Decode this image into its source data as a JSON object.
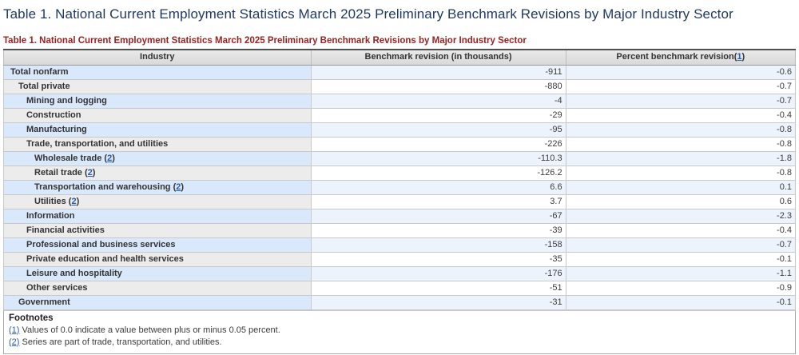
{
  "page": {
    "title": "Table 1. National Current Employment Statistics March 2025 Preliminary Benchmark Revisions by Major Industry Sector"
  },
  "table": {
    "caption": "Table 1. National Current Employment Statistics March 2025 Preliminary Benchmark Revisions by Major Industry Sector",
    "columns": [
      "Industry",
      "Benchmark revision (in thousands)",
      "Percent benchmark revision"
    ],
    "header_footnote_ref": "1",
    "rows": [
      {
        "industry": "Total nonfarm",
        "indent": 0,
        "footnote_ref": null,
        "benchmark_revision": "-911",
        "percent_revision": "-0.6"
      },
      {
        "industry": "Total private",
        "indent": 1,
        "footnote_ref": null,
        "benchmark_revision": "-880",
        "percent_revision": "-0.7"
      },
      {
        "industry": "Mining and logging",
        "indent": 2,
        "footnote_ref": null,
        "benchmark_revision": "-4",
        "percent_revision": "-0.7"
      },
      {
        "industry": "Construction",
        "indent": 2,
        "footnote_ref": null,
        "benchmark_revision": "-29",
        "percent_revision": "-0.4"
      },
      {
        "industry": "Manufacturing",
        "indent": 2,
        "footnote_ref": null,
        "benchmark_revision": "-95",
        "percent_revision": "-0.8"
      },
      {
        "industry": "Trade, transportation, and utilities",
        "indent": 2,
        "footnote_ref": null,
        "benchmark_revision": "-226",
        "percent_revision": "-0.8"
      },
      {
        "industry": "Wholesale trade",
        "indent": 3,
        "footnote_ref": "2",
        "benchmark_revision": "-110.3",
        "percent_revision": "-1.8"
      },
      {
        "industry": "Retail trade",
        "indent": 3,
        "footnote_ref": "2",
        "benchmark_revision": "-126.2",
        "percent_revision": "-0.8"
      },
      {
        "industry": "Transportation and warehousing",
        "indent": 3,
        "footnote_ref": "2",
        "benchmark_revision": "6.6",
        "percent_revision": "0.1"
      },
      {
        "industry": "Utilities",
        "indent": 3,
        "footnote_ref": "2",
        "benchmark_revision": "3.7",
        "percent_revision": "0.6"
      },
      {
        "industry": "Information",
        "indent": 2,
        "footnote_ref": null,
        "benchmark_revision": "-67",
        "percent_revision": "-2.3"
      },
      {
        "industry": "Financial activities",
        "indent": 2,
        "footnote_ref": null,
        "benchmark_revision": "-39",
        "percent_revision": "-0.4"
      },
      {
        "industry": "Professional and business services",
        "indent": 2,
        "footnote_ref": null,
        "benchmark_revision": "-158",
        "percent_revision": "-0.7"
      },
      {
        "industry": "Private education and health services",
        "indent": 2,
        "footnote_ref": null,
        "benchmark_revision": "-35",
        "percent_revision": "-0.1"
      },
      {
        "industry": "Leisure and hospitality",
        "indent": 2,
        "footnote_ref": null,
        "benchmark_revision": "-176",
        "percent_revision": "-1.1"
      },
      {
        "industry": "Other services",
        "indent": 2,
        "footnote_ref": null,
        "benchmark_revision": "-51",
        "percent_revision": "-0.9"
      },
      {
        "industry": "Government",
        "indent": 1,
        "footnote_ref": null,
        "benchmark_revision": "-31",
        "percent_revision": "-0.1"
      }
    ]
  },
  "footnotes": {
    "heading": "Footnotes",
    "items": [
      {
        "ref": "(1)",
        "text": "Values of 0.0 indicate a value between plus or minus 0.05 percent."
      },
      {
        "ref": "(2)",
        "text": "Series are part of trade, transportation, and utilities."
      }
    ]
  },
  "colors": {
    "title_navy": "#1f3864",
    "caption_red": "#992222",
    "link_blue": "#2a5db0",
    "row_blue_stub": "#d9e8fa",
    "row_blue_data": "#edf3fc",
    "row_gray_stub": "#ececec",
    "header_gray": "#e2e2e2"
  }
}
